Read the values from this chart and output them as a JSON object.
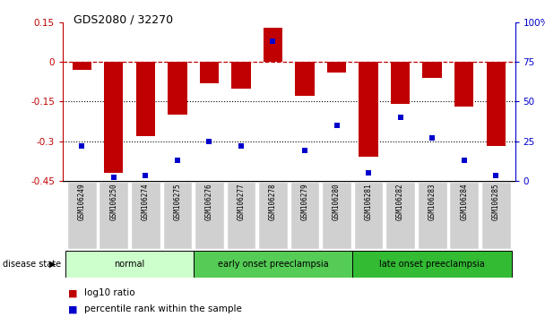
{
  "title": "GDS2080 / 32270",
  "samples": [
    "GSM106249",
    "GSM106250",
    "GSM106274",
    "GSM106275",
    "GSM106276",
    "GSM106277",
    "GSM106278",
    "GSM106279",
    "GSM106280",
    "GSM106281",
    "GSM106282",
    "GSM106283",
    "GSM106284",
    "GSM106285"
  ],
  "log10_ratio": [
    -0.03,
    -0.42,
    -0.28,
    -0.2,
    -0.08,
    -0.1,
    0.13,
    -0.13,
    -0.04,
    -0.36,
    -0.16,
    -0.06,
    -0.17,
    -0.32
  ],
  "percentile_rank": [
    22,
    2,
    3,
    13,
    25,
    22,
    88,
    19,
    35,
    5,
    40,
    27,
    13,
    3
  ],
  "bar_color": "#c00000",
  "dot_color": "#0000cc",
  "groups": [
    {
      "label": "normal",
      "start": 0,
      "end": 4,
      "color": "#ccffcc"
    },
    {
      "label": "early onset preeclampsia",
      "start": 4,
      "end": 9,
      "color": "#55cc55"
    },
    {
      "label": "late onset preeclampsia",
      "start": 9,
      "end": 14,
      "color": "#33bb33"
    }
  ],
  "group_edges": [
    0,
    4,
    9,
    14
  ],
  "ylim_left": [
    -0.45,
    0.15
  ],
  "ylim_right": [
    0,
    100
  ],
  "yticks_left": [
    -0.45,
    -0.3,
    -0.15,
    0.0,
    0.15
  ],
  "ytick_labels_left": [
    "-0.45",
    "-0.3",
    "-0.15",
    "0",
    "0.15"
  ],
  "yticks_right": [
    0,
    25,
    50,
    75,
    100
  ],
  "ytick_labels_right": [
    "0",
    "25",
    "50",
    "75",
    "100%"
  ],
  "hline_zero": 0,
  "hline_dotted": [
    -0.15,
    -0.3
  ],
  "background_color": "#ffffff",
  "bar_width": 0.6,
  "xlim": [
    -0.6,
    13.6
  ]
}
